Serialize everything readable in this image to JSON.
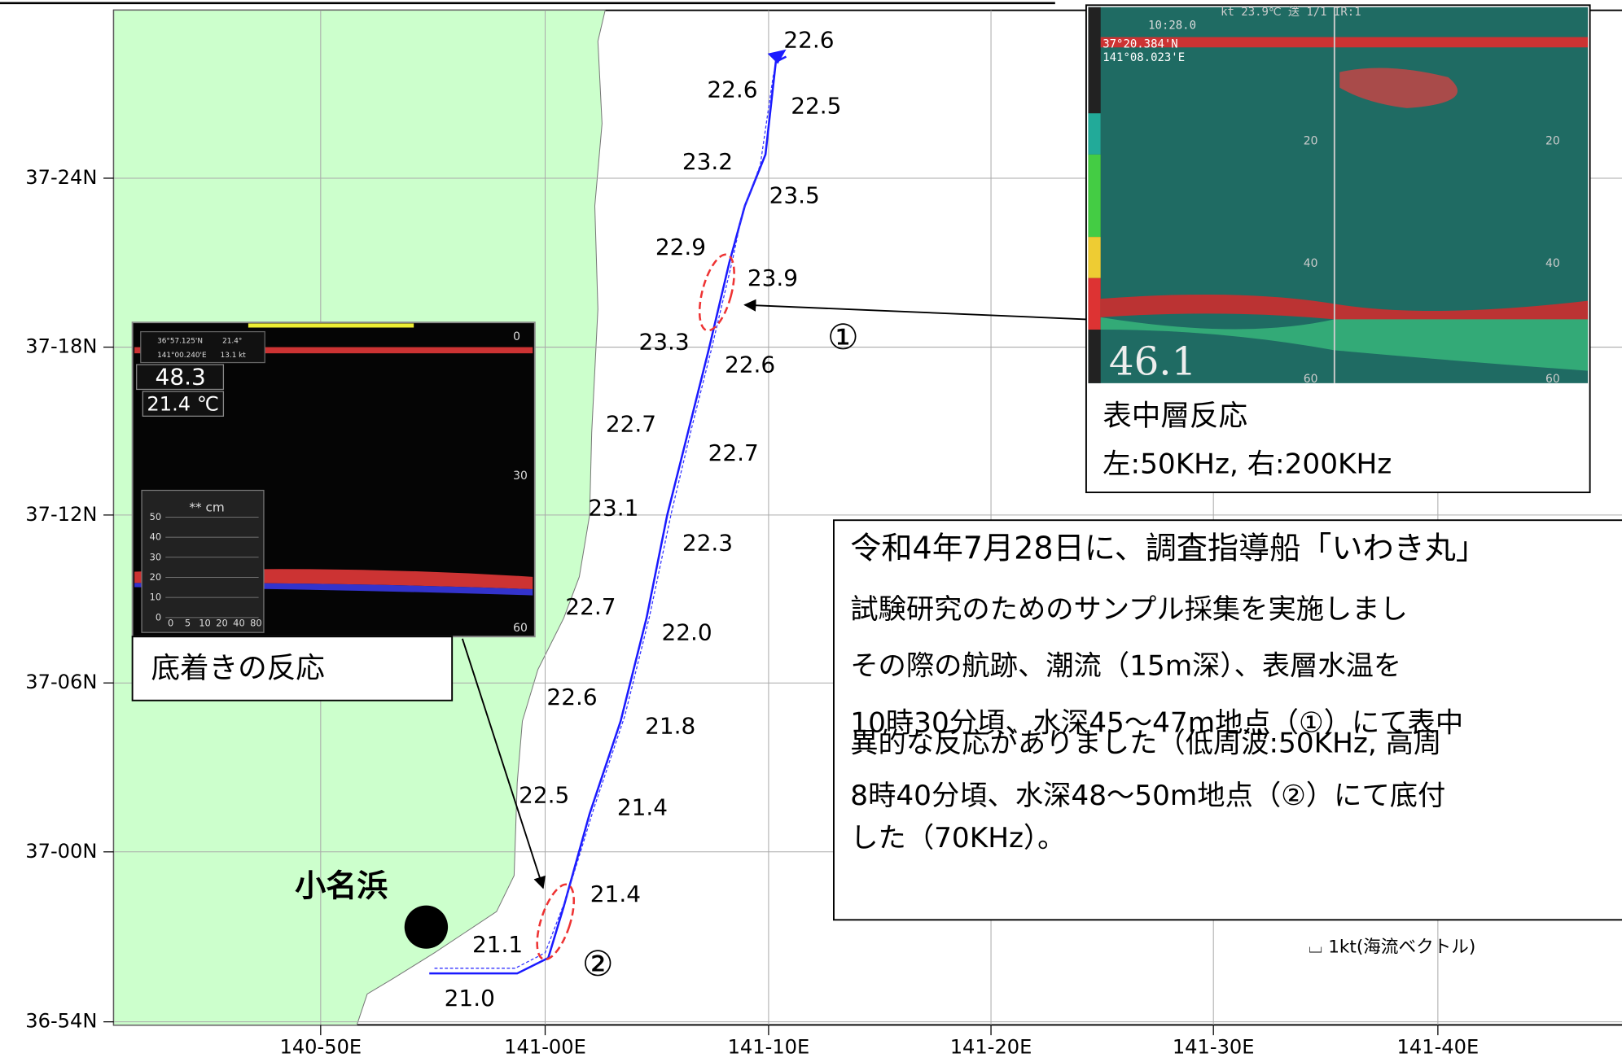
{
  "map": {
    "lat_labels": [
      "37-24N",
      "37-18N",
      "37-12N",
      "37-06N",
      "37-00N",
      "36-54N"
    ],
    "lon_labels": [
      "140-50E",
      "141-00E",
      "141-10E",
      "141-20E",
      "141-30E",
      "141-40E"
    ],
    "place": "小名浜",
    "temperatures": [
      "22.6",
      "22.6",
      "22.5",
      "23.2",
      "23.5",
      "22.9",
      "23.9",
      "23.3",
      "22.6",
      "22.7",
      "22.7",
      "23.1",
      "22.3",
      "22.7",
      "22.0",
      "22.6",
      "21.8",
      "22.5",
      "21.4",
      "21.4",
      "21.1",
      "21.0"
    ],
    "markers": [
      "①",
      "②"
    ],
    "legend": "⌴ 1kt(海流ベクトル)"
  },
  "inset_right": {
    "header": "kt   23.9℃  送 1/1 IR:1",
    "time": "10:28.0",
    "lat": "37°20.384'N",
    "lon": "141°08.023'E",
    "depth": "46.1",
    "scale": [
      "20",
      "40",
      "60"
    ],
    "caption": [
      "表中層反応",
      "左:50KHz, 右:200KHz"
    ]
  },
  "inset_left": {
    "lat": "36°57.125'N",
    "lon": "141°00.240'E",
    "heading": "21.4°",
    "speed": "13.1 kt",
    "depth": "48.3",
    "temp": "21.4 ℃",
    "scale": [
      "0",
      "30",
      "60"
    ],
    "graph_title": "** cm",
    "graph_y": [
      "50",
      "40",
      "30",
      "20",
      "10",
      "0"
    ],
    "graph_x": [
      "0",
      "5",
      "10",
      "20",
      "40",
      "80"
    ],
    "caption": "底着きの反応"
  },
  "text_box": [
    "令和4年7月28日に、調査指導船「いわき丸」",
    "試験研究のためのサンプル採集を実施しまし",
    "その際の航跡、潮流（15m深）、表層水温を",
    "10時30分頃、水深45〜47m地点（①）にて表中",
    "異的な反応がありました（低周波:50KHz, 高周",
    "8時40分頃、水深48〜50m地点（②）にて底付",
    "した（70KHz）。"
  ]
}
